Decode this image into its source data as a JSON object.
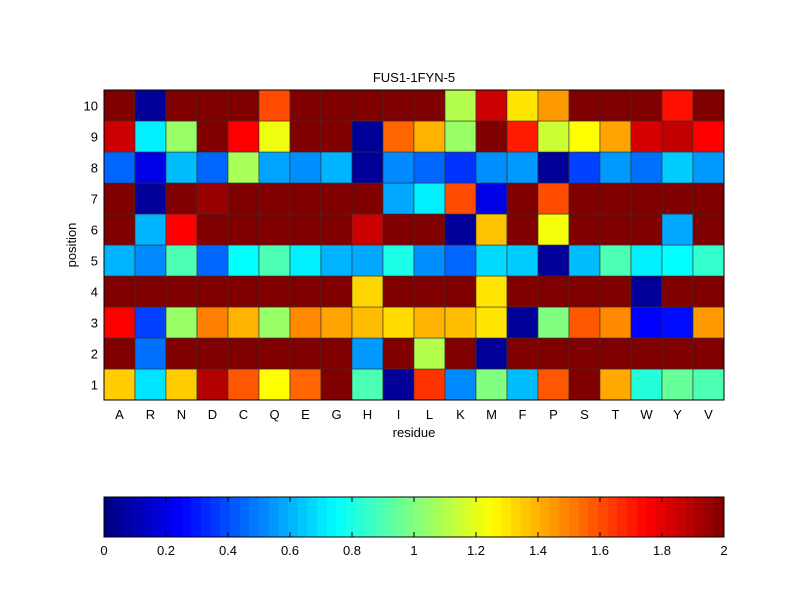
{
  "chart_data": {
    "type": "heatmap",
    "title": "FUS1-1FYN-5",
    "xlabel": "residue",
    "ylabel": "position",
    "x": [
      "A",
      "R",
      "N",
      "D",
      "C",
      "Q",
      "E",
      "G",
      "H",
      "I",
      "L",
      "K",
      "M",
      "F",
      "P",
      "S",
      "T",
      "W",
      "Y",
      "V"
    ],
    "y": [
      "1",
      "2",
      "3",
      "4",
      "5",
      "6",
      "7",
      "8",
      "9",
      "10"
    ],
    "colormap": "jet",
    "clim": [
      0,
      2
    ],
    "colorbar": {
      "placement": "bottom",
      "ticks": [
        "0",
        "0.2",
        "0.4",
        "0.6",
        "0.8",
        "1",
        "1.2",
        "1.4",
        "1.6",
        "1.8",
        "2"
      ]
    },
    "values": [
      [
        1.35,
        0.7,
        1.35,
        1.9,
        1.58,
        1.25,
        1.55,
        2,
        0.9,
        0.05,
        1.65,
        0.52,
        1.0,
        0.62,
        1.58,
        2,
        1.42,
        0.82,
        0.95,
        0.9
      ],
      [
        2,
        0.47,
        2,
        2,
        2,
        2,
        2,
        2,
        0.55,
        2,
        1.1,
        2,
        0.05,
        2,
        2,
        2,
        2,
        2,
        2,
        2
      ],
      [
        1.75,
        0.38,
        1.05,
        1.5,
        1.4,
        1.05,
        1.48,
        1.43,
        1.38,
        1.32,
        1.4,
        1.38,
        1.3,
        0.05,
        1.0,
        1.58,
        1.48,
        0.25,
        0.27,
        1.45
      ],
      [
        2,
        2,
        2,
        2,
        2,
        2,
        2,
        2,
        1.33,
        2,
        2,
        2,
        1.3,
        2,
        2,
        2,
        2,
        0.05,
        2,
        2
      ],
      [
        0.6,
        0.52,
        0.9,
        0.45,
        0.75,
        0.9,
        0.72,
        0.6,
        0.58,
        0.8,
        0.53,
        0.45,
        0.68,
        0.65,
        0.05,
        0.62,
        0.9,
        0.72,
        0.75,
        0.85
      ],
      [
        2,
        0.6,
        1.75,
        2,
        2,
        2,
        2,
        2,
        1.85,
        2,
        2,
        0.05,
        1.37,
        2,
        1.23,
        2,
        2,
        2,
        0.58,
        2
      ],
      [
        2,
        0.05,
        2,
        1.95,
        2,
        2,
        2,
        2,
        2,
        0.58,
        0.72,
        1.6,
        0.2,
        2,
        1.6,
        2,
        2,
        2,
        2,
        2
      ],
      [
        0.45,
        0.2,
        0.62,
        0.45,
        1.08,
        0.57,
        0.53,
        0.6,
        0.05,
        0.52,
        0.45,
        0.35,
        0.53,
        0.55,
        0.05,
        0.38,
        0.55,
        0.47,
        0.65,
        0.55
      ],
      [
        1.85,
        0.72,
        1.05,
        2,
        1.75,
        1.22,
        2,
        2,
        0.05,
        1.55,
        1.4,
        1.05,
        2,
        1.7,
        1.15,
        1.25,
        1.43,
        1.83,
        1.87,
        1.75
      ],
      [
        2,
        0.05,
        2,
        2,
        2,
        1.6,
        2,
        2,
        2,
        2,
        2,
        1.1,
        1.85,
        1.3,
        1.45,
        2,
        2,
        2,
        1.72,
        2
      ]
    ]
  }
}
